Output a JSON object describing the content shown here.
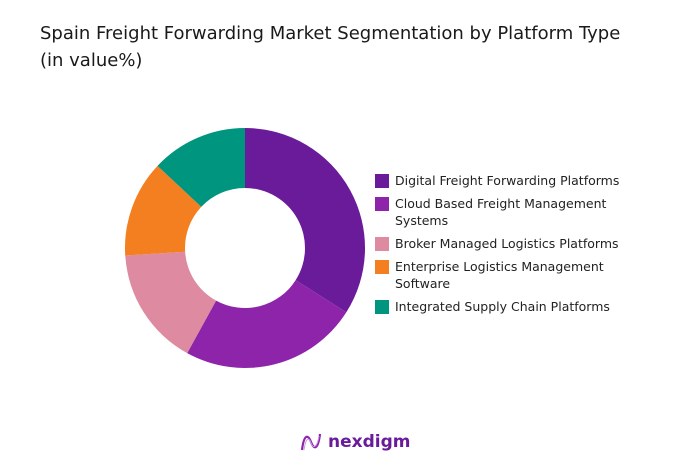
{
  "title": "Spain Freight Forwarding Market Segmentation by Platform Type (in value%)",
  "chart_data": {
    "type": "pie",
    "variant": "donut",
    "title": "Spain Freight Forwarding Market Segmentation by Platform Type (in value%)",
    "categories": [
      "Digital Freight Forwarding Platforms",
      "Cloud Based Freight Management Systems",
      "Broker Managed Logistics Platforms",
      "Enterprise Logistics Management Software",
      "Integrated Supply Chain Platforms"
    ],
    "values": [
      34,
      24,
      16,
      13,
      13
    ],
    "colors": [
      "#6a1b9a",
      "#8e24aa",
      "#de8aa0",
      "#f47f20",
      "#00957f"
    ],
    "legend_position": "right"
  },
  "logo": {
    "text": "nexdigm"
  }
}
